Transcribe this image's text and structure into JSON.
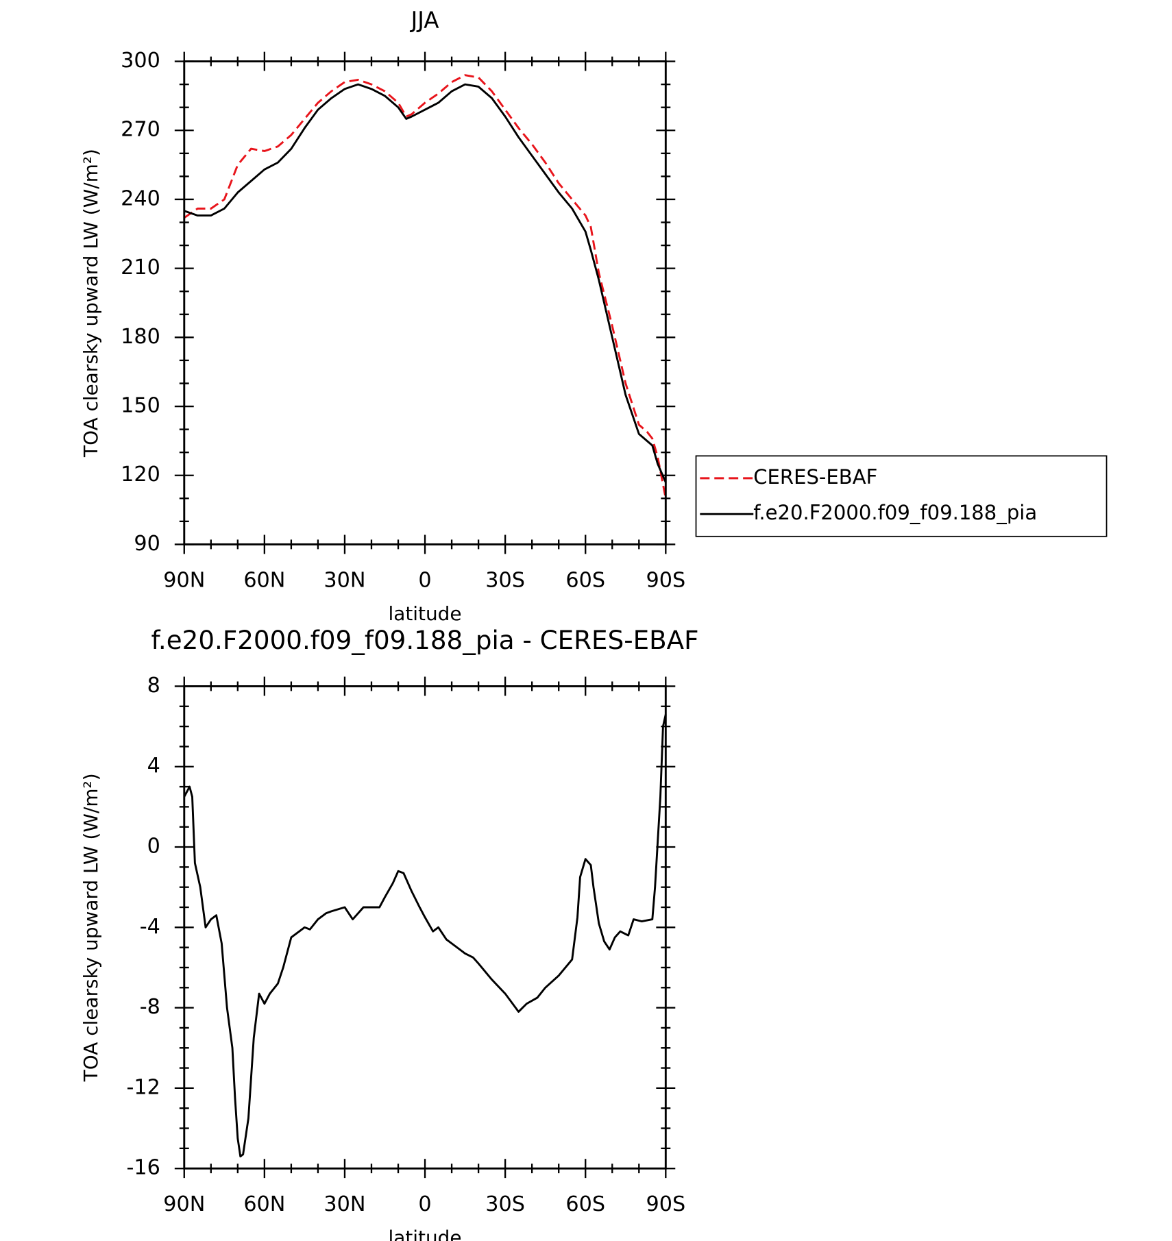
{
  "chart_data": [
    {
      "type": "line",
      "title": "JJA",
      "xlabel": "latitude",
      "ylabel": "TOA clearsky upward LW (W/m²)",
      "x": [
        90,
        85,
        80,
        75,
        70,
        65,
        60,
        55,
        50,
        45,
        40,
        35,
        30,
        25,
        20,
        15,
        10,
        7,
        5,
        0,
        -5,
        -10,
        -15,
        -20,
        -25,
        -30,
        -35,
        -40,
        -45,
        -50,
        -55,
        -60,
        -62,
        -65,
        -70,
        -75,
        -80,
        -83,
        -85,
        -87,
        -90
      ],
      "xlim": [
        90,
        -90
      ],
      "xticks": [
        {
          "value": 90,
          "label": "90N"
        },
        {
          "value": 60,
          "label": "60N"
        },
        {
          "value": 30,
          "label": "30N"
        },
        0,
        {
          "value": -30,
          "label": "30S"
        },
        {
          "value": -60,
          "label": "60S"
        },
        {
          "value": -90,
          "label": "90S"
        }
      ],
      "ylim": [
        90,
        300
      ],
      "yticks": [
        90,
        120,
        150,
        180,
        210,
        240,
        270,
        300
      ],
      "legend": "right",
      "series": [
        {
          "name": "CERES-EBAF",
          "color": "#e8141b",
          "linestyle": "dashed",
          "values": [
            232,
            236,
            236,
            240,
            255,
            262,
            261,
            263,
            268,
            275,
            282,
            287,
            291,
            292,
            290,
            287,
            282,
            276,
            277,
            282,
            286,
            291,
            294,
            293,
            287,
            279,
            271,
            264,
            256,
            247,
            240,
            233,
            228,
            208,
            185,
            160,
            142,
            139,
            136,
            128,
            110
          ]
        },
        {
          "name": "f.e20.F2000.f09_f09.188_pia",
          "color": "#000000",
          "linestyle": "solid",
          "values": [
            235,
            233,
            233,
            236,
            243,
            248,
            253,
            256,
            262,
            271,
            279,
            284,
            288,
            290,
            288,
            285,
            280,
            275,
            276,
            279,
            282,
            287,
            290,
            289,
            284,
            276,
            267,
            259,
            251,
            243,
            236,
            226,
            218,
            205,
            180,
            155,
            138,
            135,
            133,
            125,
            117
          ]
        }
      ]
    },
    {
      "type": "line",
      "title": "f.e20.F2000.f09_f09.188_pia - CERES-EBAF",
      "xlabel": "latitude",
      "ylabel": "TOA clearsky upward LW (W/m²)",
      "x": [
        90,
        88,
        87,
        86,
        84,
        82,
        80,
        78,
        76,
        74,
        72,
        71,
        70,
        69,
        68,
        66,
        64,
        62,
        60,
        58,
        55,
        53,
        50,
        47,
        45,
        43,
        40,
        37,
        35,
        30,
        27,
        23,
        20,
        17,
        15,
        12,
        10,
        8,
        5,
        2,
        0,
        -3,
        -5,
        -8,
        -12,
        -15,
        -18,
        -20,
        -25,
        -30,
        -35,
        -38,
        -42,
        -45,
        -50,
        -55,
        -57,
        -58,
        -60,
        -62,
        -63,
        -65,
        -67,
        -69,
        -71,
        -73,
        -76,
        -78,
        -81,
        -85,
        -86,
        -88,
        -89,
        -90
      ],
      "xlim": [
        90,
        -90
      ],
      "xticks": [
        {
          "value": 90,
          "label": "90N"
        },
        {
          "value": 60,
          "label": "60N"
        },
        {
          "value": 30,
          "label": "30N"
        },
        0,
        {
          "value": -30,
          "label": "30S"
        },
        {
          "value": -60,
          "label": "60S"
        },
        {
          "value": -90,
          "label": "90S"
        }
      ],
      "ylim": [
        -16,
        8
      ],
      "yticks": [
        -16,
        -12,
        -8,
        -4,
        0,
        4,
        8
      ],
      "series": [
        {
          "color": "#000000",
          "linestyle": "solid",
          "values": [
            2.5,
            3,
            2.5,
            -0.8,
            -2,
            -4,
            -3.6,
            -3.4,
            -4.8,
            -8,
            -10,
            -12.5,
            -14.5,
            -15.4,
            -15.3,
            -13.5,
            -9.5,
            -7.3,
            -7.8,
            -7.3,
            -6.8,
            -6,
            -4.5,
            -4.2,
            -4,
            -4.1,
            -3.6,
            -3.3,
            -3.2,
            -3,
            -3.6,
            -3,
            -3,
            -3,
            -2.5,
            -1.8,
            -1.2,
            -1.3,
            -2.2,
            -3,
            -3.5,
            -4.2,
            -4,
            -4.6,
            -5,
            -5.3,
            -5.5,
            -5.8,
            -6.6,
            -7.3,
            -8.2,
            -7.8,
            -7.5,
            -7,
            -6.4,
            -5.6,
            -3.5,
            -1.5,
            -0.6,
            -0.9,
            -2,
            -3.8,
            -4.7,
            -5.1,
            -4.5,
            -4.2,
            -4.4,
            -3.6,
            -3.7,
            -3.6,
            -2,
            2.5,
            6,
            6.6
          ]
        }
      ]
    }
  ]
}
